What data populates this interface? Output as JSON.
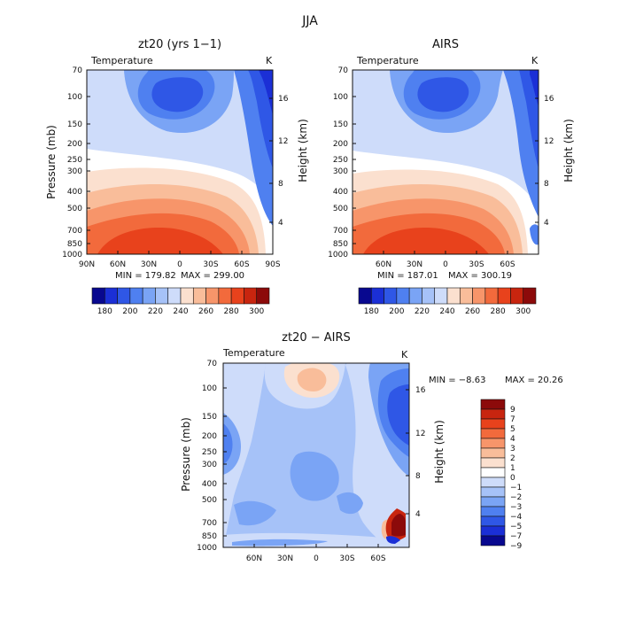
{
  "figure_title": "JJA",
  "colors": {
    "scale_full": [
      "#08088f",
      "#1b2fd6",
      "#2f57e6",
      "#4f80f0",
      "#7aa4f5",
      "#a6c2f8",
      "#cedcfa",
      "#ffffff",
      "#fbe0cf",
      "#f9bd9a",
      "#f7956a",
      "#f26a3c",
      "#e8421c",
      "#c8250f",
      "#8c0a0a"
    ],
    "scale_panel": [
      "#08088f",
      "#1b2fd6",
      "#2f57e6",
      "#4f80f0",
      "#7aa4f5",
      "#a6c2f8",
      "#cedcfa",
      "#fbe0cf",
      "#f9bd9a",
      "#f7956a",
      "#f26a3c",
      "#e8421c",
      "#c8250f",
      "#8c0a0a"
    ]
  },
  "chart_data": [
    {
      "type": "heatmap",
      "id": "model",
      "title": "zt20 (yrs 1−1)",
      "variable": "Temperature",
      "unit": "K",
      "xlabel": "",
      "ylabel": "Pressure (mb)",
      "ylabel_right": "Height (km)",
      "x_tick_labels": [
        "90N",
        "60N",
        "30N",
        "0",
        "30S",
        "60S",
        "90S"
      ],
      "y_tick_labels": [
        "70",
        "100",
        "150",
        "200",
        "250",
        "300",
        "400",
        "500",
        "700",
        "850",
        "1000"
      ],
      "height_tick_labels": [
        "4",
        "8",
        "12",
        "16"
      ],
      "min_label": "MIN = 179.82",
      "max_label": "MAX = 299.00",
      "colorbar_labels": [
        "180",
        "190",
        "200",
        "210",
        "220",
        "230",
        "240",
        "250",
        "260",
        "270",
        "280",
        "290",
        "300"
      ]
    },
    {
      "type": "heatmap",
      "id": "obs",
      "title": "AIRS",
      "variable": "Temperature",
      "unit": "K",
      "xlabel": "",
      "ylabel": "",
      "ylabel_right": "Height (km)",
      "x_tick_labels": [
        "60N",
        "30N",
        "0",
        "30S",
        "60S"
      ],
      "y_tick_labels": [
        "70",
        "100",
        "150",
        "200",
        "250",
        "300",
        "400",
        "500",
        "700",
        "850",
        "1000"
      ],
      "height_tick_labels": [
        "4",
        "8",
        "12",
        "16"
      ],
      "min_label": "MIN = 187.01",
      "max_label": "MAX = 300.19",
      "colorbar_labels": [
        "180",
        "190",
        "200",
        "210",
        "220",
        "230",
        "240",
        "250",
        "260",
        "270",
        "280",
        "290",
        "300"
      ]
    },
    {
      "type": "heatmap",
      "id": "diff",
      "title": "zt20 − AIRS",
      "variable": "Temperature",
      "unit": "K",
      "xlabel": "",
      "ylabel": "Pressure (mb)",
      "ylabel_right": "Height (km)",
      "x_tick_labels": [
        "60N",
        "30N",
        "0",
        "30S",
        "60S"
      ],
      "y_tick_labels": [
        "70",
        "100",
        "150",
        "200",
        "250",
        "300",
        "400",
        "500",
        "700",
        "850",
        "1000"
      ],
      "height_tick_labels": [
        "4",
        "8",
        "12",
        "16"
      ],
      "min_label": "MIN = −8.63",
      "max_label": "MAX = 20.26",
      "colorbar_labels": [
        "9",
        "7",
        "5",
        "4",
        "3",
        "2",
        "1",
        "0",
        "−1",
        "−2",
        "−3",
        "−4",
        "−5",
        "−7",
        "−9"
      ]
    }
  ]
}
